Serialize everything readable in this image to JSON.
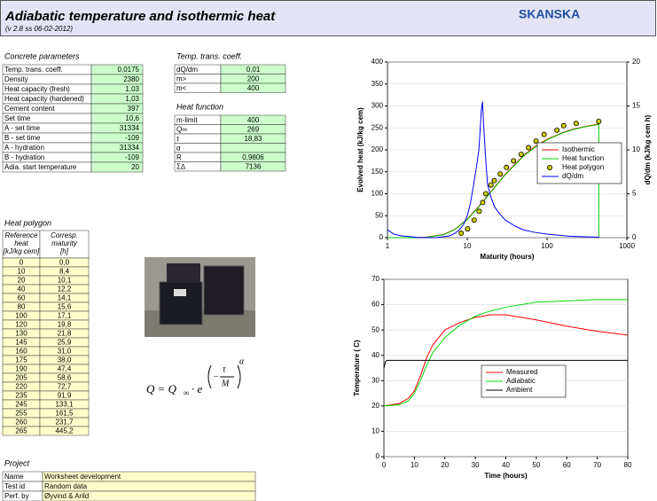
{
  "header": {
    "title": "Adiabatic temperature and isothermic heat",
    "version": "(v 2.8 ss 06-02-2012)",
    "logo": "SKANSKA"
  },
  "concrete_parameters": {
    "title": "Concrete parameters",
    "rows": [
      [
        "Temp. trans. coeff.",
        "0,0175"
      ],
      [
        "Density",
        "2380"
      ],
      [
        "Heat capacity (fresh)",
        "1,03"
      ],
      [
        "Heat capacity (hardened)",
        "1,03"
      ],
      [
        "Cement content",
        "397"
      ],
      [
        "Set time",
        "10,6"
      ],
      [
        "A - set time",
        "31334"
      ],
      [
        "B - set time",
        "-109"
      ],
      [
        "A - hydration",
        "31334"
      ],
      [
        "B - hydration",
        "-109"
      ],
      [
        "Adia. start temperature",
        "20"
      ]
    ]
  },
  "temp_trans_coeff": {
    "title": "Temp. trans. coeff.",
    "rows": [
      [
        "dQ/dm",
        "0,01"
      ],
      [
        "m>",
        "200"
      ],
      [
        "m<",
        "400"
      ]
    ]
  },
  "heat_function": {
    "title": "Heat function",
    "rows": [
      [
        "m-limit",
        "400"
      ],
      [
        "Q∞",
        "269"
      ],
      [
        "τ",
        "18,83"
      ],
      [
        "α"
      ],
      [
        "R",
        "0,9806"
      ],
      [
        "Σ∆",
        "7136"
      ]
    ]
  },
  "heat_polygon": {
    "title": "Heat polygon",
    "headers": [
      [
        "Reference",
        "heat",
        "[kJ/kg cem]"
      ],
      [
        "Corresp.",
        "maturity",
        "[h]"
      ]
    ],
    "rows": [
      [
        "0",
        "0,0"
      ],
      [
        "10",
        "8,4"
      ],
      [
        "20",
        "10,1"
      ],
      [
        "40",
        "12,2"
      ],
      [
        "60",
        "14,1"
      ],
      [
        "80",
        "15,6"
      ],
      [
        "100",
        "17,1"
      ],
      [
        "120",
        "19,8"
      ],
      [
        "130",
        "21,8"
      ],
      [
        "145",
        "25,9"
      ],
      [
        "160",
        "31,0"
      ],
      [
        "175",
        "38,0"
      ],
      [
        "190",
        "47,4"
      ],
      [
        "205",
        "58,6"
      ],
      [
        "220",
        "72,7"
      ],
      [
        "235",
        "91,9"
      ],
      [
        "245",
        "133,1"
      ],
      [
        "255",
        "161,5"
      ],
      [
        "260",
        "231,7"
      ],
      [
        "265",
        "445,2"
      ]
    ]
  },
  "project": {
    "title": "Project",
    "rows": [
      [
        "Name",
        "Worksheet development"
      ],
      [
        "Test id",
        "Random data"
      ],
      [
        "Perf. by",
        "Øyvind & Arild"
      ]
    ]
  },
  "formula": {
    "lhs": "Q = Q",
    "inf": "∞",
    "dot": "· e",
    "minus": "−",
    "tau": "τ",
    "m": "M",
    "alpha": "α"
  },
  "chart_data": [
    {
      "type": "line",
      "xlabel": "Maturity (hours)",
      "ylabel": "Evolved heat (kJ/kg cem)",
      "y2label": "dQ/dm (kJ/kg cem h)",
      "xscale": "log",
      "xlim": [
        1,
        1000
      ],
      "xticks": [
        1,
        10,
        100,
        1000
      ],
      "ylim": [
        0,
        400
      ],
      "yticks": [
        0,
        50,
        100,
        150,
        200,
        250,
        300,
        350,
        400
      ],
      "y2lim": [
        0,
        20
      ],
      "y2ticks": [
        0,
        5,
        10,
        15,
        20
      ],
      "grid": true,
      "legend": "center right",
      "series": [
        {
          "name": "Isothermic",
          "color": "#ff0000",
          "x": [
            1,
            2,
            3,
            5,
            7,
            10,
            15,
            20,
            30,
            50,
            70,
            100,
            150,
            200,
            300,
            445
          ],
          "values": [
            0,
            0,
            1,
            7,
            19,
            42,
            78,
            106,
            145,
            186,
            207,
            224,
            238,
            246,
            253,
            259
          ]
        },
        {
          "name": "Heat function",
          "color": "#00cc00",
          "x": [
            1,
            2,
            3,
            5,
            7,
            10,
            15,
            20,
            30,
            50,
            70,
            100,
            150,
            200,
            300,
            445,
            445
          ],
          "values": [
            0,
            0,
            0.5,
            6.2,
            18.3,
            40.9,
            76.7,
            105,
            143.6,
            184.5,
            205.5,
            222.8,
            237.3,
            244.9,
            252.6,
            258,
            0
          ]
        },
        {
          "name": "Heat polygon",
          "color": "#000000",
          "fill": "#cccc00",
          "marker": "circle",
          "x": [
            8.4,
            10.1,
            12.2,
            14.1,
            15.6,
            17.1,
            19.8,
            21.8,
            25.9,
            31.0,
            38.0,
            47.4,
            58.6,
            72.7,
            91.9,
            133.1,
            161.5,
            231.7,
            445.2
          ],
          "values": [
            10,
            20,
            40,
            60,
            80,
            100,
            120,
            130,
            145,
            160,
            175,
            190,
            205,
            220,
            235,
            245,
            255,
            260,
            265
          ]
        },
        {
          "name": "dQ/dm",
          "color": "#0000ff",
          "axis": "y2",
          "x": [
            1,
            1.2,
            1.5,
            2,
            2.5,
            3,
            4,
            5,
            6,
            7,
            8,
            9,
            10,
            11,
            12,
            13,
            14,
            15,
            15.5,
            16,
            17,
            18,
            20,
            22,
            25,
            30,
            40,
            50,
            70,
            100,
            150,
            200,
            300,
            450
          ],
          "values": [
            0.9,
            0.4,
            0.2,
            0.1,
            0,
            0,
            0,
            0.1,
            0.2,
            0.5,
            0.9,
            1.5,
            2.5,
            4,
            6,
            8,
            10,
            14.5,
            15.5,
            13,
            9,
            6,
            4.5,
            3.5,
            2.8,
            2,
            1.3,
            0.9,
            0.6,
            0.4,
            0.25,
            0.15,
            0.1,
            0.05
          ]
        }
      ]
    },
    {
      "type": "line",
      "xlabel": "Time (hours)",
      "ylabel": "Temperature ( C)",
      "xlim": [
        0,
        80
      ],
      "xticks": [
        0,
        10,
        20,
        30,
        40,
        50,
        60,
        70,
        80
      ],
      "ylim": [
        0,
        70
      ],
      "yticks": [
        0,
        10,
        20,
        30,
        40,
        50,
        60,
        70
      ],
      "grid": true,
      "legend": "center",
      "series": [
        {
          "name": "Measured",
          "color": "#ff0000",
          "x": [
            0,
            5,
            8,
            10,
            12,
            14,
            16,
            20,
            25,
            30,
            35,
            40,
            50,
            60,
            70,
            80
          ],
          "values": [
            20,
            21,
            23,
            26,
            32,
            39,
            44,
            50,
            53,
            55,
            56,
            56,
            54,
            51.5,
            49.5,
            48
          ]
        },
        {
          "name": "Adiabatic",
          "color": "#00dd00",
          "x": [
            0,
            5,
            8,
            10,
            12,
            14,
            16,
            20,
            25,
            30,
            35,
            40,
            50,
            60,
            70,
            80
          ],
          "values": [
            20,
            20.5,
            22,
            25,
            30,
            36,
            41,
            47,
            52,
            55.5,
            57.5,
            59,
            61,
            61.5,
            62,
            62
          ]
        },
        {
          "name": "Ambient",
          "color": "#000000",
          "x": [
            0,
            0.5,
            1,
            10,
            20,
            30,
            40,
            50,
            60,
            70,
            80
          ],
          "values": [
            35,
            37.5,
            38,
            38,
            38,
            38,
            38,
            38,
            38,
            38,
            38
          ]
        }
      ]
    }
  ]
}
